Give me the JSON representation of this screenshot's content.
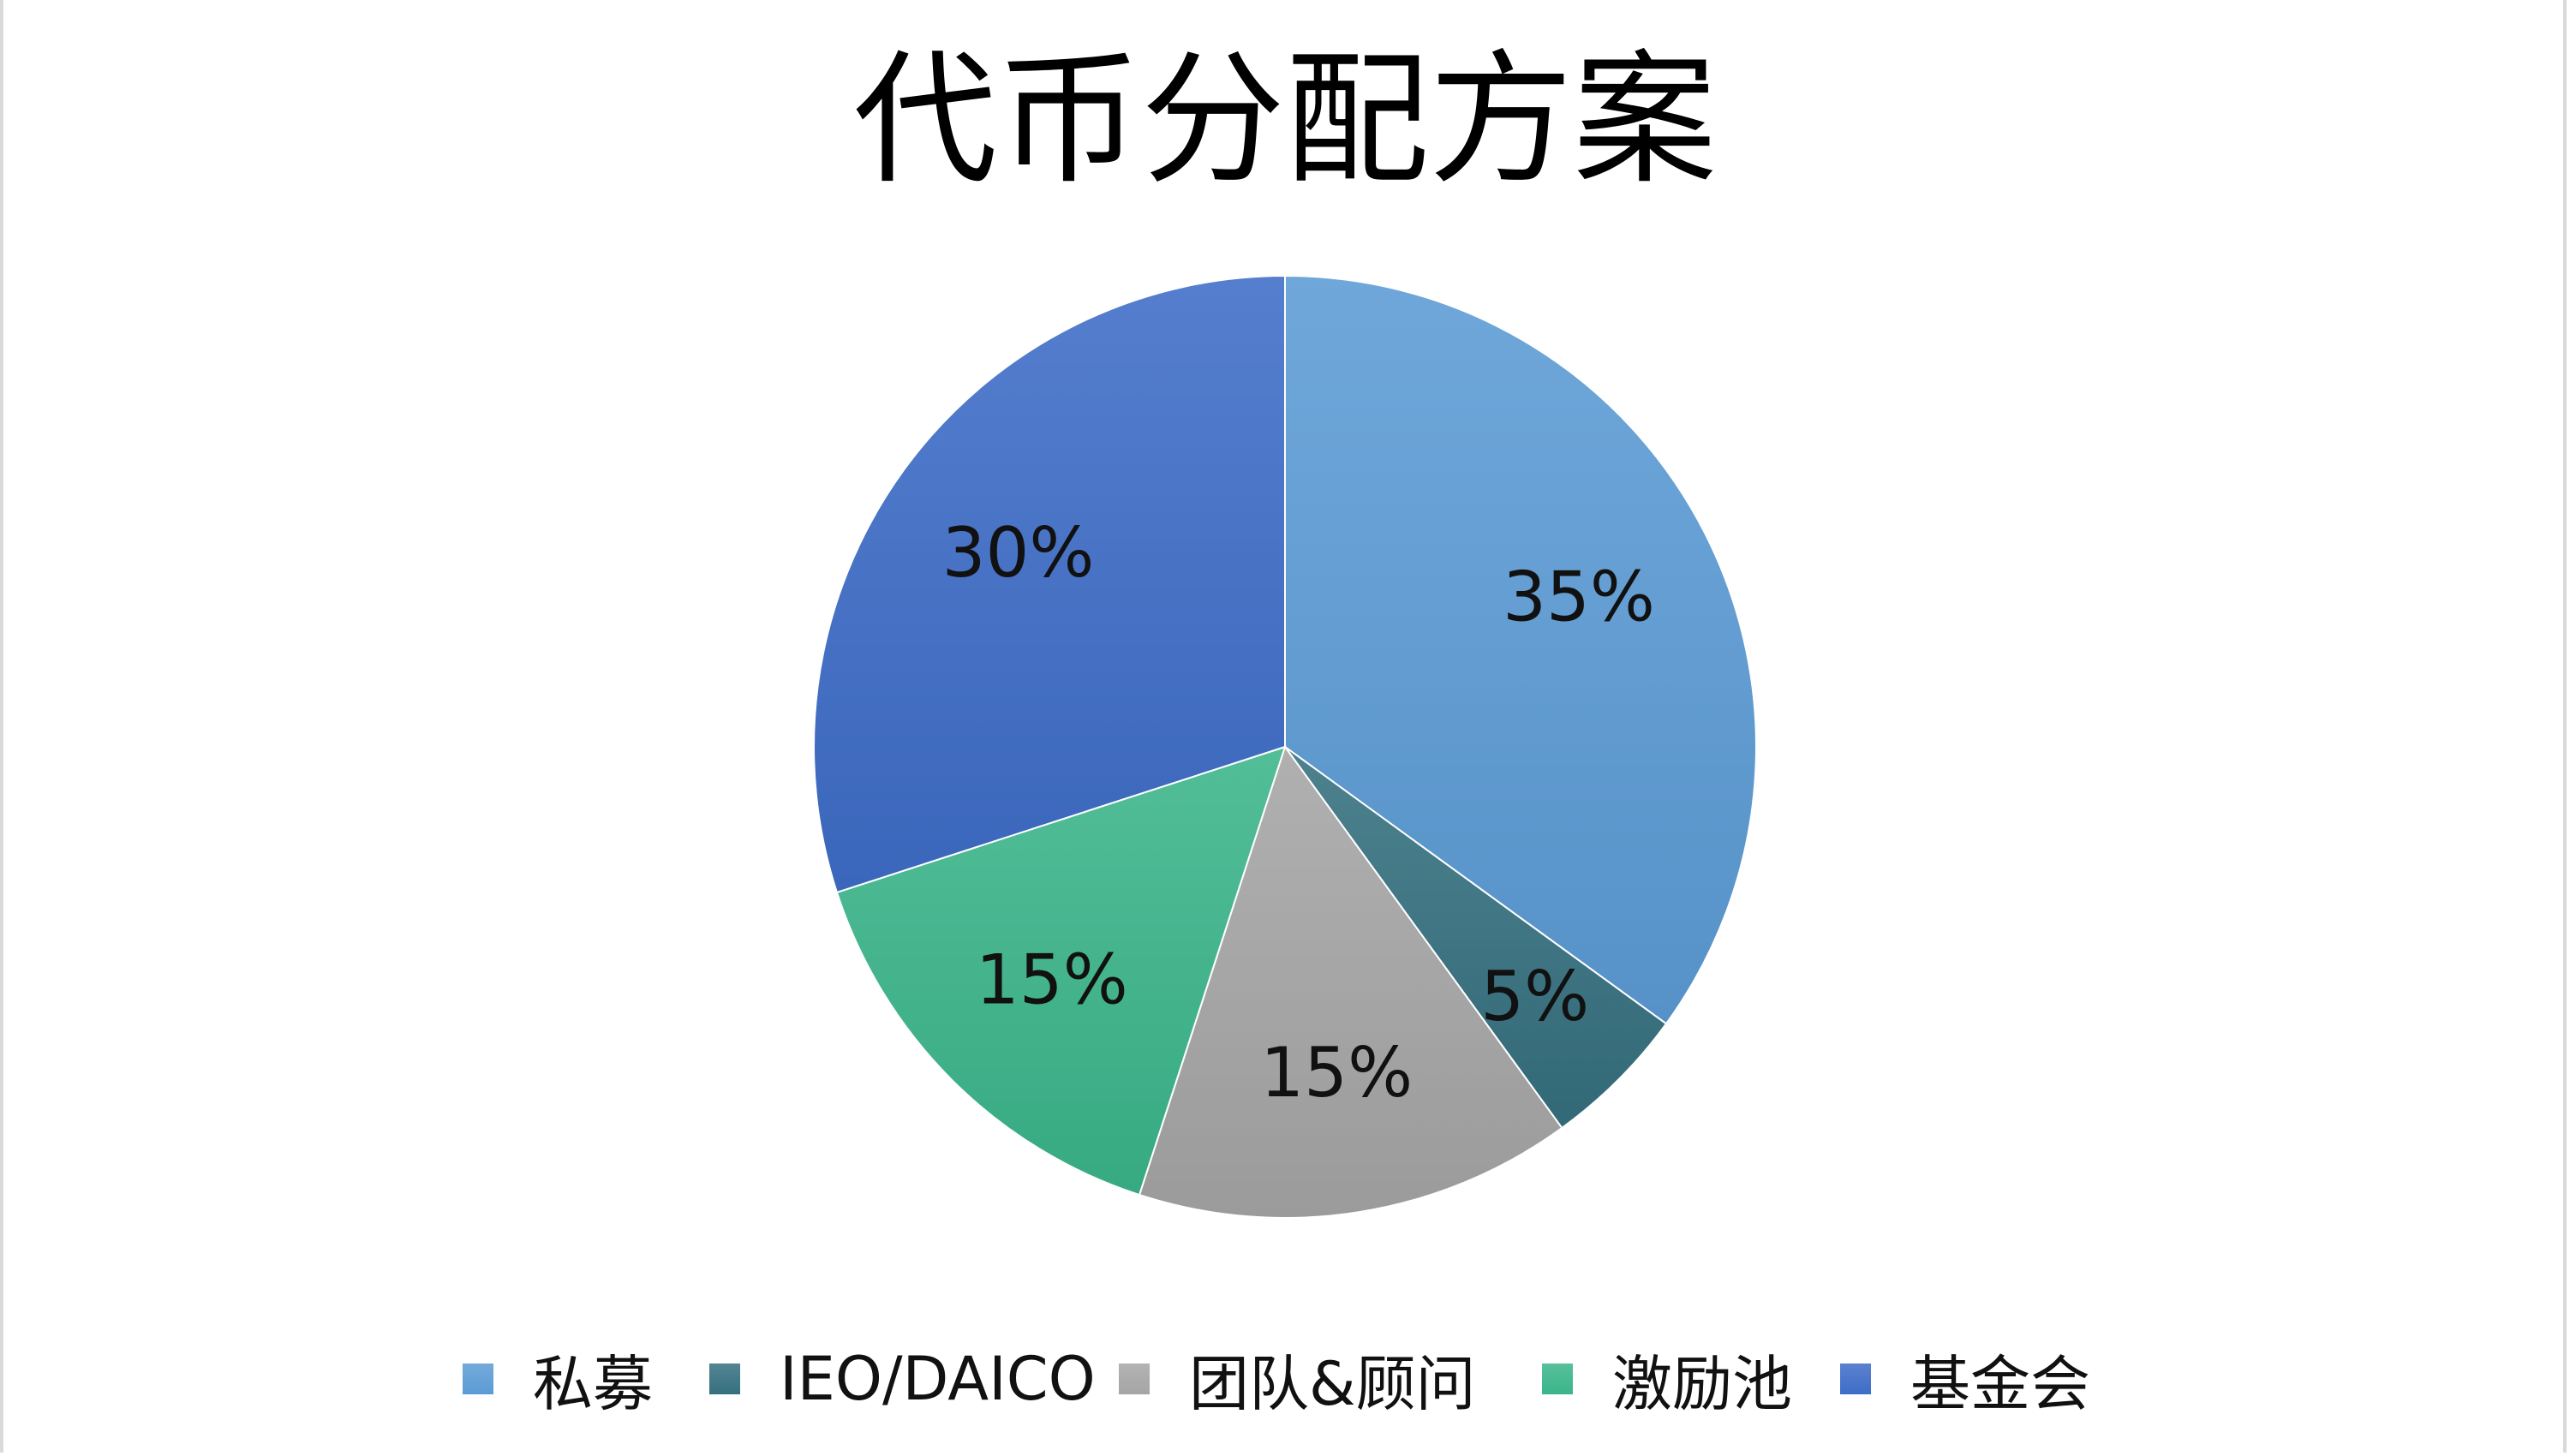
{
  "chart_data": {
    "type": "pie",
    "title": "代币分配方案",
    "categories": [
      "私募",
      "IEO/DAICO",
      "团队&顾问",
      "激励池",
      "基金会"
    ],
    "values": [
      35,
      5,
      15,
      15,
      30
    ],
    "data_labels": [
      "35%",
      "5%",
      "15%",
      "15%",
      "30%"
    ],
    "colors": [
      "#5b9bd5",
      "#35707f",
      "#a5a5a5",
      "#3ab58a",
      "#3e6cc7"
    ],
    "start": "12 o'clock",
    "direction": "clockwise",
    "legend": "bottom"
  }
}
